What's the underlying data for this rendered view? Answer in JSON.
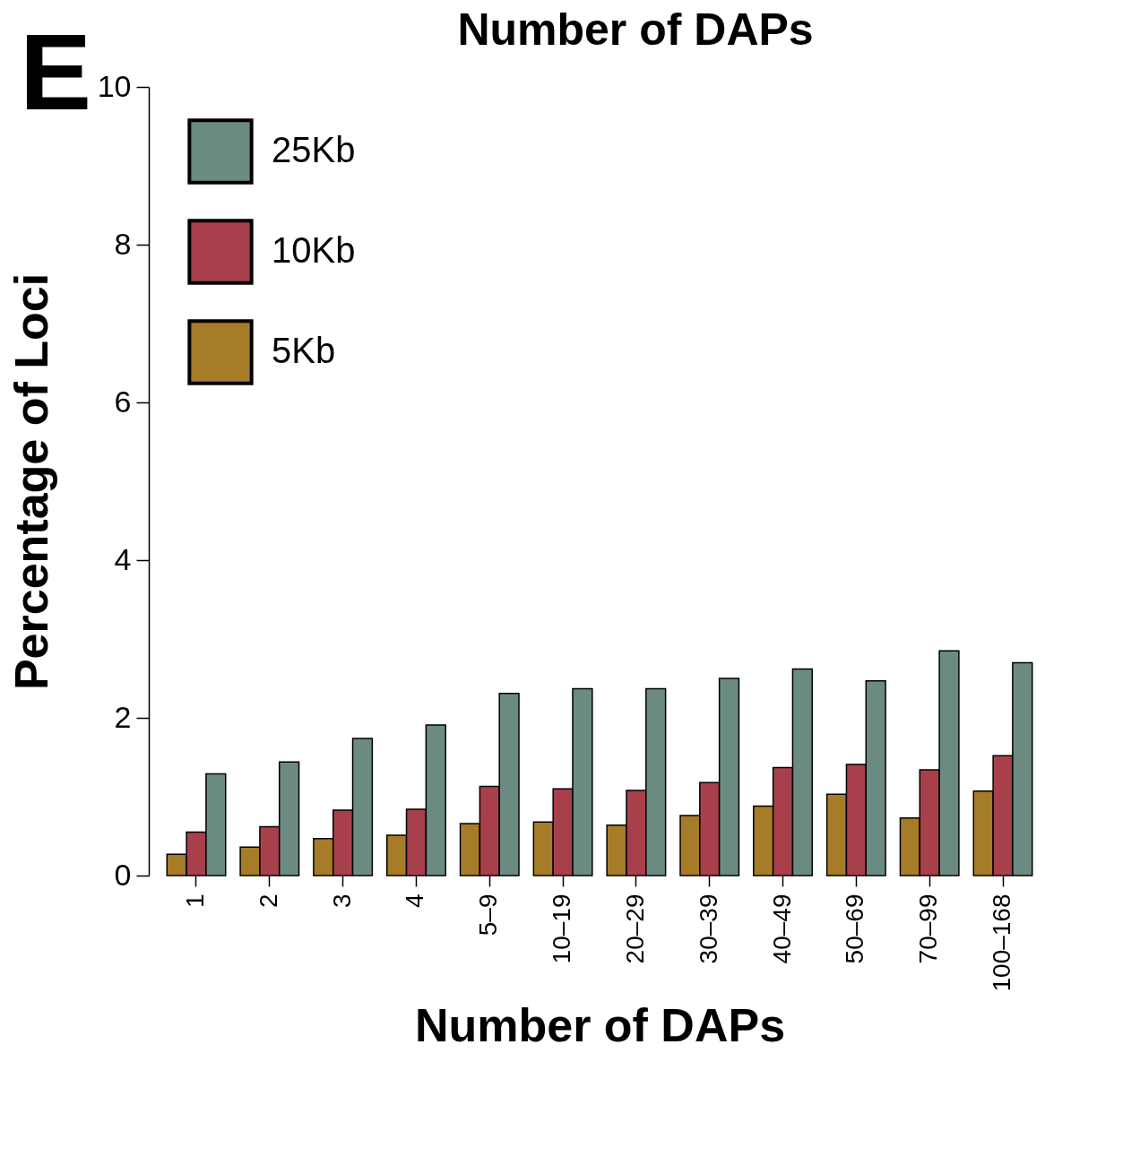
{
  "chart_data": {
    "type": "bar",
    "title": "Number of DAPs",
    "xlabel": "Number of DAPs",
    "ylabel": "Percentage of Loci",
    "annotations": [
      "E"
    ],
    "categories": [
      "1",
      "2",
      "3",
      "4",
      "5–9",
      "10–19",
      "20–29",
      "30–39",
      "40–49",
      "50–69",
      "70–99",
      "100–168"
    ],
    "series": [
      {
        "name": "5Kb",
        "color": "#a67c28",
        "values": [
          0.27,
          0.36,
          0.47,
          0.51,
          0.66,
          0.68,
          0.64,
          0.76,
          0.88,
          1.03,
          0.73,
          1.07
        ]
      },
      {
        "name": "10Kb",
        "color": "#a8404c",
        "values": [
          0.55,
          0.62,
          0.83,
          0.84,
          1.13,
          1.1,
          1.08,
          1.18,
          1.37,
          1.41,
          1.34,
          1.52
        ]
      },
      {
        "name": "25Kb",
        "color": "#6b8b82",
        "values": [
          1.29,
          1.44,
          1.74,
          1.91,
          2.31,
          2.37,
          2.37,
          2.5,
          2.62,
          2.47,
          2.85,
          2.7
        ]
      }
    ],
    "ylim": [
      0,
      10
    ],
    "yticks": [
      0,
      2,
      4,
      6,
      8,
      10
    ],
    "grid": false,
    "legend": "top left"
  }
}
